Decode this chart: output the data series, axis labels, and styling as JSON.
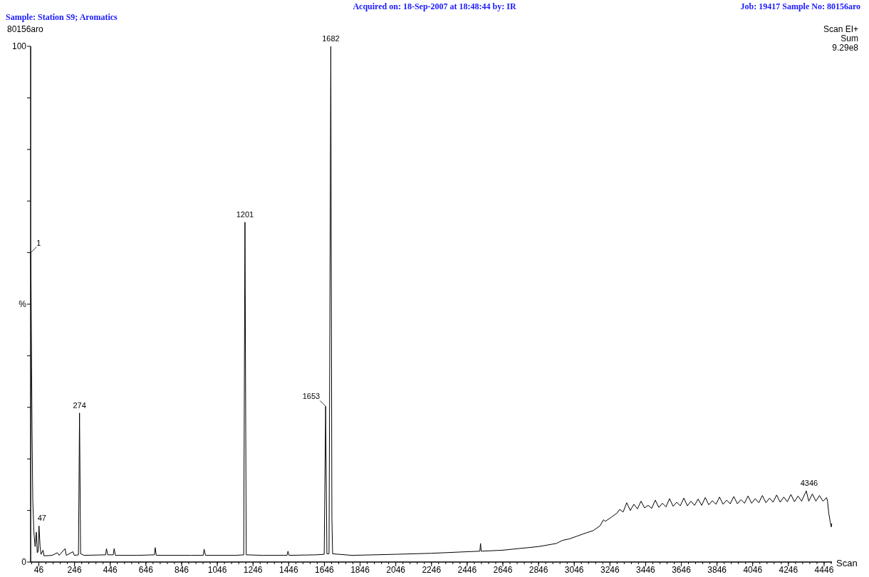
{
  "chart_data": {
    "type": "line",
    "title": "Sample: Station S9; Aromatics",
    "xlabel": "Scan",
    "annotations": [
      "Acquired on: 18-Sep-2007 at 18:48:44 by: IR",
      "Job: 19417 Sample No: 80156aro",
      "80156aro",
      "Scan EI+",
      "Sum",
      "9.29e8",
      {
        "text": "1",
        "x": 1,
        "y": 60
      },
      {
        "text": "47",
        "x": 47,
        "y": 7
      },
      {
        "text": "274",
        "x": 274,
        "y": 28.9
      },
      {
        "text": "1201",
        "x": 1201,
        "y": 65.9
      },
      {
        "text": "1653",
        "x": 1653,
        "y": 30.2
      },
      {
        "text": "1682",
        "x": 1682,
        "y": 100
      },
      {
        "text": "4346",
        "x": 4346,
        "y": 13.8
      }
    ],
    "xlim": [
      0,
      4490
    ],
    "ylim": [
      0,
      100
    ],
    "xticks": [
      46,
      246,
      446,
      646,
      846,
      1046,
      1246,
      1446,
      1646,
      1846,
      2046,
      2246,
      2446,
      2646,
      2846,
      3046,
      3246,
      3446,
      3646,
      3846,
      4046,
      4246,
      4446
    ],
    "yticks": [
      0,
      {
        "value": 10,
        "label": null
      },
      {
        "value": 20,
        "label": null
      },
      {
        "value": 30,
        "label": null
      },
      {
        "value": 40,
        "label": null
      },
      {
        "value": 50,
        "label": "%"
      },
      {
        "value": 60,
        "label": null
      },
      {
        "value": 70,
        "label": null
      },
      {
        "value": 80,
        "label": null
      },
      {
        "value": 90,
        "label": null
      },
      100
    ],
    "series": [
      {
        "color": "#000000",
        "x": [
          1,
          4,
          8,
          12,
          18,
          25,
          32,
          37,
          42,
          47,
          53,
          58,
          70,
          75,
          120,
          150,
          160,
          193,
          200,
          237,
          245,
          268,
          274,
          280,
          300,
          420,
          425,
          432,
          463,
          468,
          475,
          600,
          694,
          698,
          704,
          900,
          967,
          972,
          980,
          1150,
          1194,
          1201,
          1208,
          1300,
          1437,
          1442,
          1448,
          1600,
          1645,
          1653,
          1660,
          1672,
          1682,
          1688,
          1692,
          1800,
          2046,
          2246,
          2446,
          2517,
          2521,
          2525,
          2646,
          2846,
          2946,
          2980,
          3020,
          3060,
          3100,
          3152,
          3190,
          3210,
          3220,
          3250,
          3286,
          3300,
          3320,
          3340,
          3360,
          3380,
          3400,
          3420,
          3440,
          3460,
          3480,
          3500,
          3520,
          3540,
          3560,
          3580,
          3600,
          3620,
          3640,
          3660,
          3680,
          3700,
          3720,
          3740,
          3760,
          3780,
          3800,
          3820,
          3840,
          3860,
          3880,
          3900,
          3920,
          3940,
          3960,
          3980,
          4000,
          4020,
          4040,
          4060,
          4080,
          4100,
          4120,
          4140,
          4160,
          4180,
          4200,
          4220,
          4240,
          4260,
          4280,
          4300,
          4320,
          4346,
          4360,
          4380,
          4400,
          4420,
          4440,
          4460,
          4465,
          4472,
          4480,
          4486,
          4489
        ],
        "values": [
          60,
          45,
          25,
          12,
          6,
          3,
          5.8,
          1.8,
          2,
          7,
          3,
          1.5,
          2.3,
          1.2,
          1.3,
          1.8,
          1.3,
          2.6,
          1.3,
          2.0,
          1.3,
          1.4,
          28.9,
          1.6,
          1.3,
          1.4,
          2.6,
          1.4,
          1.4,
          2.6,
          1.3,
          1.3,
          1.4,
          2.8,
          1.3,
          1.3,
          1.3,
          2.5,
          1.3,
          1.3,
          1.4,
          65.9,
          1.4,
          1.3,
          1.3,
          2.1,
          1.3,
          1.4,
          1.5,
          30.2,
          1.6,
          1.6,
          100,
          8.5,
          1.6,
          1.3,
          1.5,
          1.7,
          2.0,
          2.1,
          3.6,
          2.1,
          2.3,
          3.0,
          3.6,
          4.2,
          4.5,
          5.0,
          5.5,
          6.1,
          7.0,
          8.2,
          7.9,
          8.6,
          9.5,
          10.2,
          9.7,
          11.5,
          10.0,
          11.2,
          10.3,
          11.8,
          10.5,
          11.0,
          10.4,
          12.0,
          10.6,
          11.4,
          10.7,
          12.3,
          10.8,
          11.6,
          10.9,
          12.4,
          10.9,
          11.8,
          11.0,
          12.2,
          11.0,
          12.5,
          11.1,
          11.9,
          11.2,
          12.6,
          11.2,
          12.0,
          11.3,
          12.7,
          11.3,
          12.1,
          11.4,
          12.8,
          11.4,
          12.3,
          11.5,
          12.9,
          11.5,
          12.4,
          11.6,
          13.0,
          11.6,
          12.6,
          11.7,
          13.1,
          11.7,
          12.8,
          11.8,
          13.8,
          11.8,
          13.2,
          11.8,
          12.9,
          11.8,
          12.5,
          11.8,
          9.5,
          7.8,
          6.8,
          7.5
        ]
      }
    ]
  }
}
